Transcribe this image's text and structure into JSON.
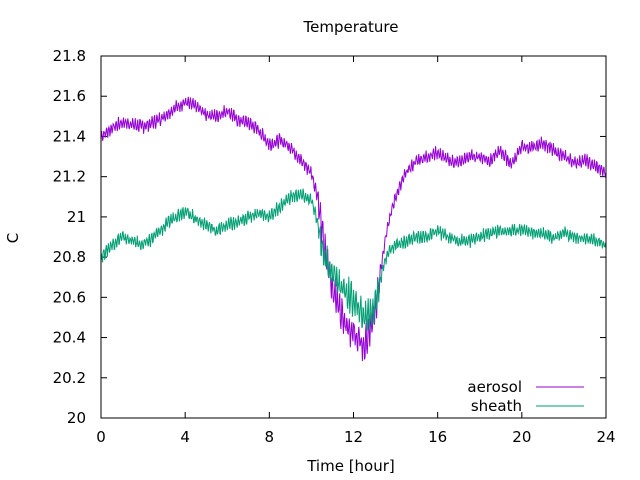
{
  "chart_data": {
    "type": "line",
    "title": "Temperature",
    "xlabel": "Time [hour]",
    "ylabel": "C",
    "xlim": [
      0,
      24
    ],
    "ylim": [
      20,
      21.8
    ],
    "xticks": [
      0,
      4,
      8,
      12,
      16,
      20,
      24
    ],
    "xtick_labels": [
      "0",
      "4",
      "8",
      "12",
      "16",
      "20",
      "24"
    ],
    "yticks": [
      20,
      20.2,
      20.4,
      20.6,
      20.8,
      21,
      21.2,
      21.4,
      21.6,
      21.8
    ],
    "ytick_labels": [
      "20",
      "20.2",
      "20.4",
      "20.6",
      "20.8",
      "21",
      "21.2",
      "21.4",
      "21.6",
      "21.8"
    ],
    "grid": false,
    "legend_position": "bottom-right",
    "series": [
      {
        "name": "aerosol",
        "color": "#9400d3",
        "x": [
          0,
          0.5,
          1,
          1.5,
          2,
          2.5,
          3,
          3.5,
          4,
          4.5,
          5,
          5.5,
          6,
          6.5,
          7,
          7.5,
          8,
          8.5,
          9,
          9.5,
          10,
          10.3,
          10.6,
          11,
          11.5,
          12,
          12.5,
          13,
          13.3,
          13.6,
          14,
          14.5,
          15,
          15.5,
          16,
          16.5,
          17,
          17.5,
          18,
          18.5,
          19,
          19.5,
          20,
          20.5,
          21,
          21.5,
          22,
          22.5,
          23,
          23.5,
          24
        ],
        "y": [
          21.4,
          21.44,
          21.47,
          21.46,
          21.45,
          21.47,
          21.5,
          21.54,
          21.57,
          21.55,
          21.51,
          21.5,
          21.53,
          21.48,
          21.47,
          21.43,
          21.36,
          21.38,
          21.35,
          21.28,
          21.22,
          21.1,
          20.85,
          20.65,
          20.5,
          20.42,
          20.35,
          20.5,
          20.75,
          20.95,
          21.1,
          21.22,
          21.28,
          21.3,
          21.32,
          21.28,
          21.27,
          21.3,
          21.3,
          21.28,
          21.33,
          21.26,
          21.35,
          21.34,
          21.37,
          21.33,
          21.3,
          21.27,
          21.28,
          21.25,
          21.22
        ]
      },
      {
        "name": "sheath",
        "color": "#009e73",
        "x": [
          0,
          0.5,
          1,
          1.5,
          2,
          2.5,
          3,
          3.5,
          4,
          4.5,
          5,
          5.5,
          6,
          6.5,
          7,
          7.5,
          8,
          8.5,
          9,
          9.5,
          10,
          10.3,
          10.6,
          11,
          11.5,
          12,
          12.5,
          13,
          13.3,
          13.6,
          14,
          14.5,
          15,
          15.5,
          16,
          16.5,
          17,
          17.5,
          18,
          18.5,
          19,
          19.5,
          20,
          20.5,
          21,
          21.5,
          22,
          22.5,
          23,
          23.5,
          24
        ],
        "y": [
          20.8,
          20.86,
          20.9,
          20.88,
          20.86,
          20.9,
          20.95,
          21.0,
          21.03,
          20.99,
          20.96,
          20.93,
          20.96,
          20.97,
          21.0,
          21.02,
          21.0,
          21.05,
          21.1,
          21.11,
          21.08,
          20.97,
          20.8,
          20.72,
          20.64,
          20.58,
          20.5,
          20.55,
          20.7,
          20.82,
          20.86,
          20.88,
          20.9,
          20.9,
          20.93,
          20.9,
          20.88,
          20.88,
          20.9,
          20.92,
          20.93,
          20.93,
          20.94,
          20.92,
          20.92,
          20.9,
          20.92,
          20.9,
          20.89,
          20.88,
          20.86
        ]
      }
    ]
  }
}
